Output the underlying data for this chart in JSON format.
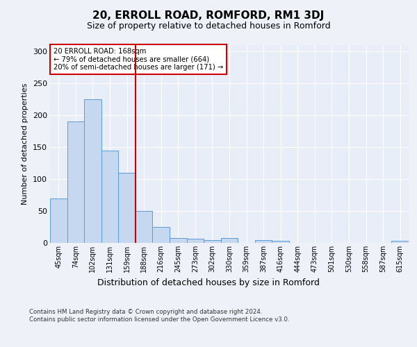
{
  "title": "20, ERROLL ROAD, ROMFORD, RM1 3DJ",
  "subtitle": "Size of property relative to detached houses in Romford",
  "xlabel": "Distribution of detached houses by size in Romford",
  "ylabel": "Number of detached properties",
  "categories": [
    "45sqm",
    "74sqm",
    "102sqm",
    "131sqm",
    "159sqm",
    "188sqm",
    "216sqm",
    "245sqm",
    "273sqm",
    "302sqm",
    "330sqm",
    "359sqm",
    "387sqm",
    "416sqm",
    "444sqm",
    "473sqm",
    "501sqm",
    "530sqm",
    "558sqm",
    "587sqm",
    "615sqm"
  ],
  "values": [
    70,
    190,
    225,
    145,
    110,
    50,
    25,
    8,
    6,
    4,
    8,
    0,
    4,
    3,
    0,
    0,
    0,
    0,
    0,
    0,
    3
  ],
  "bar_color": "#c5d8f0",
  "bar_edge_color": "#5b9bd5",
  "vline_x": 4.5,
  "vline_color": "#cc0000",
  "annotation_text": "20 ERROLL ROAD: 168sqm\n← 79% of detached houses are smaller (664)\n20% of semi-detached houses are larger (171) →",
  "annotation_box_color": "#ffffff",
  "annotation_box_edge": "#cc0000",
  "ylim": [
    0,
    310
  ],
  "title_fontsize": 11,
  "subtitle_fontsize": 9,
  "xlabel_fontsize": 9,
  "ylabel_fontsize": 8,
  "footer_text": "Contains HM Land Registry data © Crown copyright and database right 2024.\nContains public sector information licensed under the Open Government Licence v3.0.",
  "background_color": "#eef2f8",
  "plot_background": "#e8eef8"
}
